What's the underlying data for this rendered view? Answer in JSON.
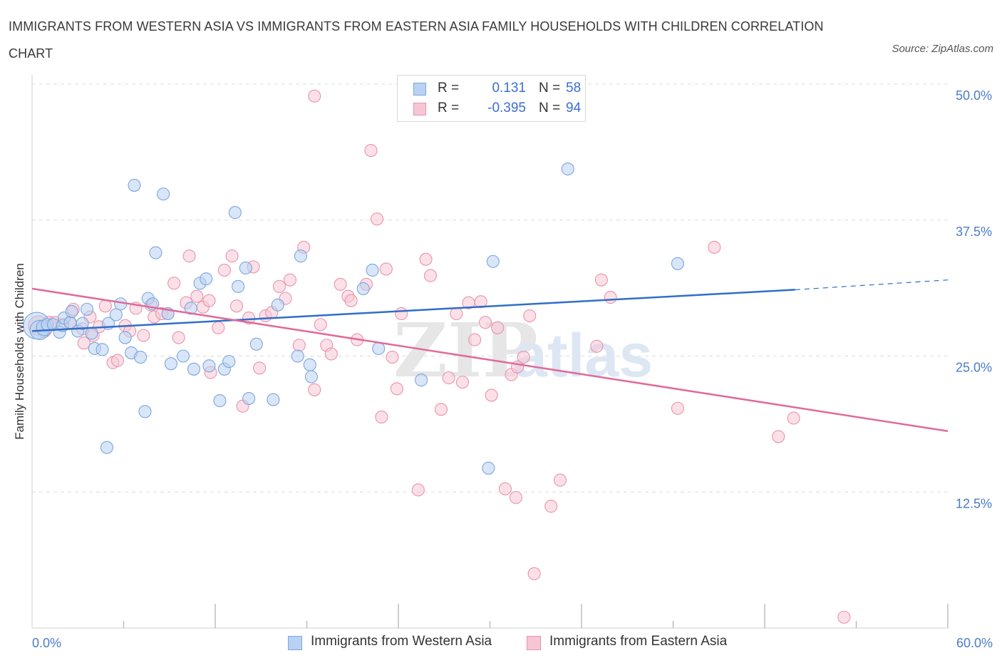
{
  "header": {
    "title": "IMMIGRANTS FROM WESTERN ASIA VS IMMIGRANTS FROM EASTERN ASIA FAMILY HOUSEHOLDS WITH CHILDREN CORRELATION CHART",
    "source": "Source: ZipAtlas.com"
  },
  "colors": {
    "blue_fill": "#b9d2f3",
    "blue_stroke": "#7ba6dd",
    "blue_line": "#2f6fc7",
    "pink_fill": "#f7c6d4",
    "pink_stroke": "#e794ae",
    "pink_line": "#e06a98",
    "tick_text": "#4a7cc9",
    "grid": "#dcdcdc"
  },
  "legend_top": {
    "rows": [
      {
        "r_label": "R =",
        "r_value": "0.131",
        "n_label": "N =",
        "n_value": "58"
      },
      {
        "r_label": "R =",
        "r_value": "-0.395",
        "n_label": "N =",
        "n_value": "94"
      }
    ]
  },
  "legend_bottom": [
    {
      "label": "Immigrants from Western Asia"
    },
    {
      "label": "Immigrants from Eastern Asia"
    }
  ],
  "watermark": {
    "left": "ZIP",
    "right": "atlas"
  },
  "chart_data": {
    "type": "scatter",
    "title": "IMMIGRANTS FROM WESTERN ASIA VS IMMIGRANTS FROM EASTERN ASIA FAMILY HOUSEHOLDS WITH CHILDREN CORRELATION CHART",
    "xlabel": "",
    "ylabel": "Family Households with Children",
    "xlim": [
      0,
      60
    ],
    "ylim": [
      0,
      50
    ],
    "x_tick_labels": [
      {
        "value": 0,
        "label": "0.0%"
      },
      {
        "value": 60,
        "label": "60.0%"
      }
    ],
    "y_tick_labels": [
      {
        "value": 12.5,
        "label": "12.5%"
      },
      {
        "value": 25,
        "label": "25.0%"
      },
      {
        "value": 37.5,
        "label": "37.5%"
      },
      {
        "value": 50,
        "label": "50.0%"
      }
    ],
    "grid": true,
    "legend_position": "bottom",
    "series": [
      {
        "name": "Immigrants from Western Asia",
        "color": "#7ba6dd",
        "trend": {
          "x": [
            0,
            50
          ],
          "y": [
            27.3,
            31.1
          ],
          "dashed_to": [
            60,
            32.0
          ]
        },
        "points": [
          {
            "x": 0.3,
            "y": 27.8,
            "s": 2.2
          },
          {
            "x": 0.5,
            "y": 27.4,
            "s": 1.6
          },
          {
            "x": 0.8,
            "y": 27.6,
            "s": 1.3
          },
          {
            "x": 1.0,
            "y": 27.9,
            "s": 1.0
          },
          {
            "x": 1.4,
            "y": 27.9,
            "s": 1.0
          },
          {
            "x": 1.8,
            "y": 27.2,
            "s": 1.0
          },
          {
            "x": 2.0,
            "y": 27.8,
            "s": 1.0
          },
          {
            "x": 2.1,
            "y": 28.5,
            "s": 1.0
          },
          {
            "x": 2.5,
            "y": 28.1,
            "s": 1.0
          },
          {
            "x": 2.6,
            "y": 29.1,
            "s": 1.0
          },
          {
            "x": 3.0,
            "y": 27.3,
            "s": 1.0
          },
          {
            "x": 3.3,
            "y": 28.0,
            "s": 1.0
          },
          {
            "x": 3.6,
            "y": 29.3,
            "s": 1.0
          },
          {
            "x": 3.9,
            "y": 27.1,
            "s": 1.0
          },
          {
            "x": 4.1,
            "y": 25.7,
            "s": 1.0
          },
          {
            "x": 4.6,
            "y": 25.6,
            "s": 1.0
          },
          {
            "x": 4.9,
            "y": 16.6,
            "s": 1.0
          },
          {
            "x": 5.0,
            "y": 28.0,
            "s": 1.0
          },
          {
            "x": 5.5,
            "y": 28.8,
            "s": 1.0
          },
          {
            "x": 5.8,
            "y": 29.8,
            "s": 1.0
          },
          {
            "x": 6.1,
            "y": 26.7,
            "s": 1.0
          },
          {
            "x": 6.5,
            "y": 25.3,
            "s": 1.0
          },
          {
            "x": 6.7,
            "y": 40.7,
            "s": 1.0
          },
          {
            "x": 7.1,
            "y": 24.9,
            "s": 1.0
          },
          {
            "x": 7.4,
            "y": 19.9,
            "s": 1.0
          },
          {
            "x": 7.6,
            "y": 30.3,
            "s": 1.0
          },
          {
            "x": 7.9,
            "y": 29.8,
            "s": 1.0
          },
          {
            "x": 8.1,
            "y": 34.5,
            "s": 1.0
          },
          {
            "x": 8.6,
            "y": 39.9,
            "s": 1.0
          },
          {
            "x": 8.9,
            "y": 28.9,
            "s": 1.0
          },
          {
            "x": 9.1,
            "y": 24.3,
            "s": 1.0
          },
          {
            "x": 9.9,
            "y": 25.0,
            "s": 1.0
          },
          {
            "x": 10.4,
            "y": 29.4,
            "s": 1.0
          },
          {
            "x": 10.6,
            "y": 23.8,
            "s": 1.0
          },
          {
            "x": 11.0,
            "y": 31.7,
            "s": 1.0
          },
          {
            "x": 11.4,
            "y": 32.1,
            "s": 1.0
          },
          {
            "x": 11.6,
            "y": 24.1,
            "s": 1.0
          },
          {
            "x": 12.3,
            "y": 20.9,
            "s": 1.0
          },
          {
            "x": 12.6,
            "y": 23.8,
            "s": 1.0
          },
          {
            "x": 12.9,
            "y": 24.5,
            "s": 1.0
          },
          {
            "x": 13.3,
            "y": 38.2,
            "s": 1.0
          },
          {
            "x": 13.5,
            "y": 31.4,
            "s": 1.0
          },
          {
            "x": 14.0,
            "y": 33.1,
            "s": 1.0
          },
          {
            "x": 14.2,
            "y": 21.1,
            "s": 1.0
          },
          {
            "x": 14.7,
            "y": 26.1,
            "s": 1.0
          },
          {
            "x": 15.8,
            "y": 21.0,
            "s": 1.0
          },
          {
            "x": 16.1,
            "y": 29.7,
            "s": 1.0
          },
          {
            "x": 17.4,
            "y": 25.0,
            "s": 1.0
          },
          {
            "x": 17.6,
            "y": 34.2,
            "s": 1.0
          },
          {
            "x": 18.2,
            "y": 24.2,
            "s": 1.0
          },
          {
            "x": 18.3,
            "y": 23.1,
            "s": 1.0
          },
          {
            "x": 21.7,
            "y": 31.2,
            "s": 1.0
          },
          {
            "x": 22.3,
            "y": 32.9,
            "s": 1.0
          },
          {
            "x": 22.7,
            "y": 25.7,
            "s": 1.0
          },
          {
            "x": 25.5,
            "y": 22.8,
            "s": 1.0
          },
          {
            "x": 29.9,
            "y": 14.7,
            "s": 1.0
          },
          {
            "x": 30.2,
            "y": 33.7,
            "s": 1.0
          },
          {
            "x": 35.1,
            "y": 42.2,
            "s": 1.0
          },
          {
            "x": 42.3,
            "y": 33.5,
            "s": 1.0
          }
        ]
      },
      {
        "name": "Immigrants from Eastern Asia",
        "color": "#e794ae",
        "trend": {
          "x": [
            0,
            60
          ],
          "y": [
            31.2,
            18.1
          ]
        },
        "points": [
          {
            "x": 0.4,
            "y": 27.8,
            "s": 1.6
          },
          {
            "x": 0.8,
            "y": 27.4,
            "s": 1.2
          },
          {
            "x": 1.1,
            "y": 28.0,
            "s": 1.2
          },
          {
            "x": 1.5,
            "y": 28.1,
            "s": 1.0
          },
          {
            "x": 2.0,
            "y": 27.9,
            "s": 1.0
          },
          {
            "x": 2.5,
            "y": 28.0,
            "s": 1.0
          },
          {
            "x": 2.7,
            "y": 29.3,
            "s": 1.0
          },
          {
            "x": 3.3,
            "y": 27.5,
            "s": 1.0
          },
          {
            "x": 3.4,
            "y": 26.2,
            "s": 1.0
          },
          {
            "x": 3.8,
            "y": 28.6,
            "s": 1.0
          },
          {
            "x": 4.0,
            "y": 26.9,
            "s": 1.0
          },
          {
            "x": 4.4,
            "y": 27.7,
            "s": 1.0
          },
          {
            "x": 4.8,
            "y": 29.6,
            "s": 1.0
          },
          {
            "x": 5.3,
            "y": 24.4,
            "s": 1.0
          },
          {
            "x": 5.6,
            "y": 24.6,
            "s": 1.0
          },
          {
            "x": 6.1,
            "y": 27.8,
            "s": 1.0
          },
          {
            "x": 6.4,
            "y": 27.3,
            "s": 1.0
          },
          {
            "x": 6.8,
            "y": 29.4,
            "s": 1.0
          },
          {
            "x": 7.3,
            "y": 26.9,
            "s": 1.0
          },
          {
            "x": 7.8,
            "y": 29.7,
            "s": 1.0
          },
          {
            "x": 8.0,
            "y": 28.6,
            "s": 1.0
          },
          {
            "x": 8.5,
            "y": 28.9,
            "s": 1.0
          },
          {
            "x": 8.9,
            "y": 28.9,
            "s": 1.0
          },
          {
            "x": 9.3,
            "y": 31.7,
            "s": 1.0
          },
          {
            "x": 9.6,
            "y": 26.7,
            "s": 1.0
          },
          {
            "x": 10.1,
            "y": 29.9,
            "s": 1.0
          },
          {
            "x": 10.3,
            "y": 34.2,
            "s": 1.0
          },
          {
            "x": 10.8,
            "y": 30.5,
            "s": 1.0
          },
          {
            "x": 11.2,
            "y": 29.5,
            "s": 1.0
          },
          {
            "x": 11.6,
            "y": 30.1,
            "s": 1.0
          },
          {
            "x": 11.7,
            "y": 23.5,
            "s": 1.0
          },
          {
            "x": 12.2,
            "y": 27.6,
            "s": 1.0
          },
          {
            "x": 12.6,
            "y": 32.9,
            "s": 1.0
          },
          {
            "x": 13.1,
            "y": 34.2,
            "s": 1.0
          },
          {
            "x": 13.4,
            "y": 29.6,
            "s": 1.0
          },
          {
            "x": 13.8,
            "y": 20.4,
            "s": 1.0
          },
          {
            "x": 14.2,
            "y": 28.5,
            "s": 1.0
          },
          {
            "x": 14.5,
            "y": 33.2,
            "s": 1.0
          },
          {
            "x": 14.9,
            "y": 23.9,
            "s": 1.0
          },
          {
            "x": 15.3,
            "y": 28.7,
            "s": 1.0
          },
          {
            "x": 15.7,
            "y": 29.0,
            "s": 1.0
          },
          {
            "x": 16.2,
            "y": 31.4,
            "s": 1.0
          },
          {
            "x": 16.6,
            "y": 30.3,
            "s": 1.0
          },
          {
            "x": 16.9,
            "y": 32.0,
            "s": 1.0
          },
          {
            "x": 17.5,
            "y": 26.0,
            "s": 1.0
          },
          {
            "x": 17.8,
            "y": 35.0,
            "s": 1.0
          },
          {
            "x": 18.5,
            "y": 48.9,
            "s": 1.0
          },
          {
            "x": 18.5,
            "y": 21.9,
            "s": 1.0
          },
          {
            "x": 18.9,
            "y": 27.9,
            "s": 1.0
          },
          {
            "x": 19.3,
            "y": 26.0,
            "s": 1.0
          },
          {
            "x": 19.6,
            "y": 25.2,
            "s": 1.0
          },
          {
            "x": 20.2,
            "y": 31.6,
            "s": 1.0
          },
          {
            "x": 20.7,
            "y": 30.5,
            "s": 1.0
          },
          {
            "x": 20.9,
            "y": 30.1,
            "s": 1.0
          },
          {
            "x": 21.3,
            "y": 26.5,
            "s": 1.0
          },
          {
            "x": 21.9,
            "y": 31.6,
            "s": 1.0
          },
          {
            "x": 22.2,
            "y": 43.9,
            "s": 1.0
          },
          {
            "x": 22.6,
            "y": 37.6,
            "s": 1.0
          },
          {
            "x": 22.9,
            "y": 19.4,
            "s": 1.0
          },
          {
            "x": 23.2,
            "y": 33.0,
            "s": 1.0
          },
          {
            "x": 23.6,
            "y": 24.9,
            "s": 1.0
          },
          {
            "x": 23.9,
            "y": 22.0,
            "s": 1.0
          },
          {
            "x": 24.2,
            "y": 28.9,
            "s": 1.0
          },
          {
            "x": 25.3,
            "y": 12.7,
            "s": 1.0
          },
          {
            "x": 25.8,
            "y": 33.9,
            "s": 1.0
          },
          {
            "x": 26.1,
            "y": 32.4,
            "s": 1.0
          },
          {
            "x": 26.8,
            "y": 20.1,
            "s": 1.0
          },
          {
            "x": 27.3,
            "y": 23.0,
            "s": 1.0
          },
          {
            "x": 27.8,
            "y": 28.9,
            "s": 1.0
          },
          {
            "x": 28.2,
            "y": 22.6,
            "s": 1.0
          },
          {
            "x": 28.6,
            "y": 29.9,
            "s": 1.0
          },
          {
            "x": 29.0,
            "y": 26.5,
            "s": 1.0
          },
          {
            "x": 29.4,
            "y": 30.0,
            "s": 1.0
          },
          {
            "x": 29.7,
            "y": 28.1,
            "s": 1.0
          },
          {
            "x": 30.1,
            "y": 21.4,
            "s": 1.0
          },
          {
            "x": 30.5,
            "y": 27.6,
            "s": 1.0
          },
          {
            "x": 31.0,
            "y": 12.8,
            "s": 1.0
          },
          {
            "x": 31.4,
            "y": 23.3,
            "s": 1.0
          },
          {
            "x": 31.7,
            "y": 12.0,
            "s": 1.0
          },
          {
            "x": 31.8,
            "y": 24.0,
            "s": 1.0
          },
          {
            "x": 32.2,
            "y": 24.9,
            "s": 1.0
          },
          {
            "x": 32.6,
            "y": 28.7,
            "s": 1.0
          },
          {
            "x": 32.9,
            "y": 5.0,
            "s": 1.0
          },
          {
            "x": 34.0,
            "y": 11.2,
            "s": 1.0
          },
          {
            "x": 34.6,
            "y": 13.6,
            "s": 1.0
          },
          {
            "x": 37.0,
            "y": 25.9,
            "s": 1.0
          },
          {
            "x": 37.3,
            "y": 32.0,
            "s": 1.0
          },
          {
            "x": 37.9,
            "y": 30.4,
            "s": 1.0
          },
          {
            "x": 42.3,
            "y": 20.2,
            "s": 1.0
          },
          {
            "x": 44.7,
            "y": 35.0,
            "s": 1.0
          },
          {
            "x": 48.9,
            "y": 17.6,
            "s": 1.0
          },
          {
            "x": 49.9,
            "y": 19.3,
            "s": 1.0
          },
          {
            "x": 53.2,
            "y": 1.0,
            "s": 1.0
          }
        ]
      }
    ]
  }
}
